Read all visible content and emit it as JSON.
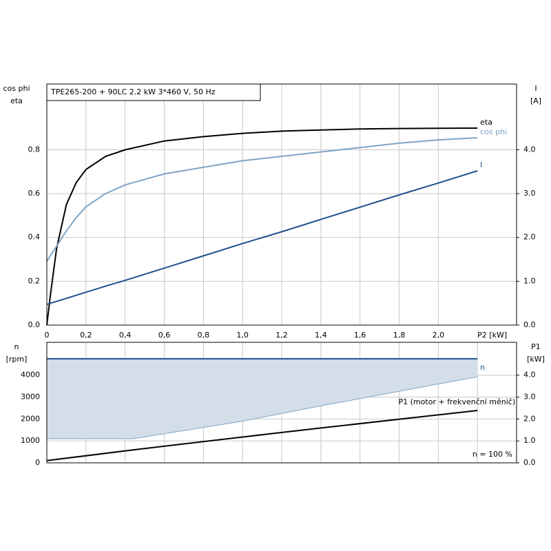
{
  "chart_data": [
    {
      "type": "line",
      "title": "TPE265-200 + 90LC  2.2 kW  3*460 V, 50 Hz",
      "ylabel": [
        "cos phi",
        "eta"
      ],
      "y2label": [
        "I",
        "[A]"
      ],
      "xlabel": "P2 [kW]",
      "x": [
        0,
        0.02,
        0.05,
        0.1,
        0.15,
        0.2,
        0.3,
        0.4,
        0.6,
        0.8,
        1.0,
        1.2,
        1.4,
        1.6,
        1.8,
        2.0,
        2.2
      ],
      "series": [
        {
          "name": "eta",
          "color": "#000000",
          "values": [
            0,
            0.15,
            0.35,
            0.55,
            0.65,
            0.71,
            0.77,
            0.8,
            0.84,
            0.86,
            0.875,
            0.885,
            0.89,
            0.895,
            0.897,
            0.898,
            0.899
          ]
        },
        {
          "name": "cos phi",
          "color": "#7fa3c4",
          "values": [
            0.29,
            0.32,
            0.36,
            0.43,
            0.49,
            0.54,
            0.6,
            0.64,
            0.69,
            0.72,
            0.75,
            0.77,
            0.79,
            0.81,
            0.83,
            0.845,
            0.855
          ]
        },
        {
          "name": "I",
          "color": "#1f4e8c",
          "axis": "y2",
          "values": [
            0.47,
            0.5,
            0.54,
            0.61,
            0.68,
            0.75,
            0.89,
            1.02,
            1.3,
            1.58,
            1.86,
            2.13,
            2.41,
            2.69,
            2.97,
            3.24,
            3.52
          ]
        }
      ],
      "xlim": [
        0,
        2.4
      ],
      "xticks": [
        0,
        {
          "value": 0.2,
          "label": "0,2"
        },
        {
          "value": 0.4,
          "label": "0,4"
        },
        {
          "value": 0.6,
          "label": "0,6"
        },
        {
          "value": 0.8,
          "label": "0,8"
        },
        {
          "value": 1.0,
          "label": "1,0"
        },
        {
          "value": 1.2,
          "label": "1,2"
        },
        {
          "value": 1.4,
          "label": "1,4"
        },
        {
          "value": 1.6,
          "label": "1,6"
        },
        {
          "value": 1.8,
          "label": "1,8"
        },
        {
          "value": 2.0,
          "label": "2,0"
        }
      ],
      "ylim": [
        0,
        1.1
      ],
      "yticks": [
        {
          "value": 0,
          "label": "0.0"
        },
        0.2,
        0.4,
        0.6,
        0.8
      ],
      "y2lim": [
        0,
        5.5
      ],
      "y2ticks": [
        {
          "value": 0,
          "label": "0.0"
        },
        {
          "value": 1,
          "label": "1.0"
        },
        {
          "value": 2,
          "label": "2.0"
        },
        {
          "value": 3,
          "label": "3.0"
        },
        {
          "value": 4,
          "label": "4.0"
        }
      ],
      "grid": true
    },
    {
      "type": "line",
      "ylabel": [
        "n",
        "[rpm]"
      ],
      "y2label": [
        "P1",
        "[kW]"
      ],
      "annotation": "n = 100 %",
      "x": [
        0,
        0.44,
        1.0,
        1.4,
        2.2
      ],
      "series": [
        {
          "name": "n",
          "color": "#1f4e8c",
          "band_color": "#d3dee9",
          "low_color": "#7fa3c4",
          "values": [
            4750,
            4750,
            4750,
            4750,
            4750
          ],
          "low": [
            1100,
            1100,
            1900,
            2600,
            3930
          ]
        },
        {
          "name": "P1 (motor + frekvenční měnič)",
          "color": "#000000",
          "axis": "y2",
          "values": [
            0.1,
            0.59,
            1.18,
            1.59,
            2.39
          ]
        }
      ],
      "xlim": [
        0,
        2.4
      ],
      "xticks": [
        0,
        0.2,
        0.4,
        0.6,
        0.8,
        1.0,
        1.2,
        1.4,
        1.6,
        1.8,
        2.0,
        2.2
      ],
      "show_xtick_labels": false,
      "ylim": [
        0,
        5500
      ],
      "yticks": [
        0,
        1000,
        2000,
        3000,
        4000
      ],
      "y2lim": [
        0,
        5.5
      ],
      "y2ticks": [
        {
          "value": 0,
          "label": "0.0"
        },
        {
          "value": 1,
          "label": "1.0"
        },
        {
          "value": 2,
          "label": "2.0"
        },
        {
          "value": 3,
          "label": "3.0"
        },
        {
          "value": 4,
          "label": "4.0"
        }
      ],
      "grid": true
    }
  ]
}
